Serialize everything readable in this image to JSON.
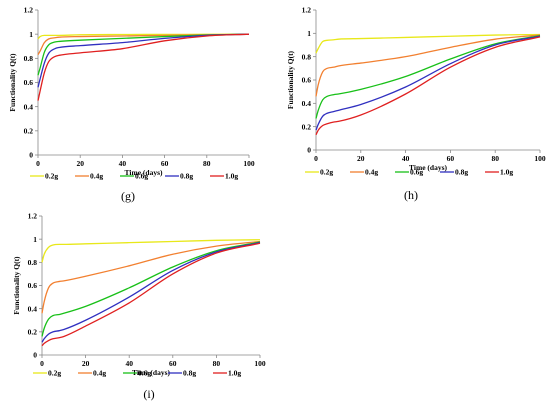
{
  "chart_data": [
    {
      "panel": "(g)",
      "type": "line",
      "xlabel": "Time (days)",
      "ylabel": "Functionality Q(t)",
      "xlim": [
        0,
        100
      ],
      "ylim": [
        0,
        1.2
      ],
      "xticks": [
        0,
        20,
        40,
        60,
        80,
        100
      ],
      "yticks": [
        0,
        0.2,
        0.4,
        0.6,
        0.8,
        1,
        1.2
      ],
      "ytick_labels": [
        "0",
        "0.2",
        "0.4",
        "0.6",
        "0.8",
        "1",
        "1.2"
      ],
      "grid": false,
      "legend_position": "bottom",
      "series": [
        {
          "name": "0.2g",
          "color": "#e8e81a",
          "x": [
            0,
            1,
            3,
            5,
            8,
            10,
            20,
            40,
            60,
            80,
            100
          ],
          "y": [
            0.96,
            0.98,
            0.99,
            0.99,
            0.99,
            0.99,
            0.995,
            0.997,
            0.998,
            0.999,
            1.0
          ]
        },
        {
          "name": "0.4g",
          "color": "#f28030",
          "x": [
            0,
            1,
            3,
            5,
            8,
            10,
            20,
            40,
            60,
            80,
            100
          ],
          "y": [
            0.83,
            0.86,
            0.93,
            0.96,
            0.97,
            0.975,
            0.98,
            0.985,
            0.99,
            0.995,
            1.0
          ]
        },
        {
          "name": "0.6g",
          "color": "#18c018",
          "x": [
            0,
            1,
            3,
            5,
            8,
            10,
            20,
            40,
            60,
            80,
            100
          ],
          "y": [
            0.66,
            0.72,
            0.85,
            0.91,
            0.935,
            0.94,
            0.95,
            0.965,
            0.98,
            0.993,
            1.0
          ]
        },
        {
          "name": "0.8g",
          "color": "#3030c0",
          "x": [
            0,
            1,
            3,
            5,
            8,
            10,
            20,
            40,
            60,
            80,
            100
          ],
          "y": [
            0.56,
            0.63,
            0.76,
            0.84,
            0.88,
            0.89,
            0.905,
            0.93,
            0.965,
            0.99,
            1.0
          ]
        },
        {
          "name": "1.0g",
          "color": "#e02020",
          "x": [
            0,
            1,
            3,
            5,
            8,
            10,
            20,
            40,
            60,
            80,
            100
          ],
          "y": [
            0.45,
            0.53,
            0.68,
            0.77,
            0.815,
            0.825,
            0.845,
            0.88,
            0.945,
            0.985,
            1.0
          ]
        }
      ]
    },
    {
      "panel": "(h)",
      "type": "line",
      "xlabel": "Time (days)",
      "ylabel": "Functionality Q(t)",
      "xlim": [
        0,
        100
      ],
      "ylim": [
        0,
        1.2
      ],
      "xticks": [
        0,
        20,
        40,
        60,
        80,
        100
      ],
      "yticks": [
        0,
        0.2,
        0.4,
        0.6,
        0.8,
        1,
        1.2
      ],
      "ytick_labels": [
        "0",
        "0.2",
        "0.4",
        "0.6",
        "0.8",
        "1",
        "1.2"
      ],
      "grid": false,
      "legend_position": "bottom",
      "series": [
        {
          "name": "0.2g",
          "color": "#e8e81a",
          "x": [
            0,
            1,
            3,
            5,
            8,
            10,
            20,
            40,
            60,
            80,
            100
          ],
          "y": [
            0.83,
            0.87,
            0.93,
            0.94,
            0.945,
            0.95,
            0.955,
            0.965,
            0.975,
            0.985,
            0.99
          ]
        },
        {
          "name": "0.4g",
          "color": "#f28030",
          "x": [
            0,
            1,
            3,
            5,
            8,
            10,
            20,
            40,
            60,
            80,
            100
          ],
          "y": [
            0.46,
            0.56,
            0.67,
            0.7,
            0.71,
            0.72,
            0.745,
            0.8,
            0.88,
            0.95,
            0.985
          ]
        },
        {
          "name": "0.6g",
          "color": "#18c018",
          "x": [
            0,
            1,
            3,
            5,
            8,
            10,
            20,
            40,
            60,
            80,
            100
          ],
          "y": [
            0.27,
            0.34,
            0.43,
            0.46,
            0.475,
            0.48,
            0.52,
            0.63,
            0.78,
            0.91,
            0.98
          ]
        },
        {
          "name": "0.8g",
          "color": "#3030c0",
          "x": [
            0,
            1,
            3,
            5,
            8,
            10,
            20,
            40,
            60,
            80,
            100
          ],
          "y": [
            0.17,
            0.22,
            0.29,
            0.315,
            0.33,
            0.34,
            0.39,
            0.54,
            0.74,
            0.9,
            0.975
          ]
        },
        {
          "name": "1.0g",
          "color": "#e02020",
          "x": [
            0,
            1,
            3,
            5,
            8,
            10,
            20,
            40,
            60,
            80,
            100
          ],
          "y": [
            0.13,
            0.17,
            0.21,
            0.225,
            0.24,
            0.245,
            0.3,
            0.48,
            0.71,
            0.88,
            0.97
          ]
        }
      ]
    },
    {
      "panel": "(i)",
      "type": "line",
      "xlabel": "Time (days)",
      "ylabel": "Functionality Q(t)",
      "xlim": [
        0,
        100
      ],
      "ylim": [
        0,
        1.2
      ],
      "xticks": [
        0,
        20,
        40,
        60,
        80,
        100
      ],
      "yticks": [
        0,
        0.2,
        0.4,
        0.6,
        0.8,
        1,
        1.2
      ],
      "ytick_labels": [
        "0",
        "0.2",
        "0.4",
        "0.6",
        "0.8",
        "1",
        "1.2"
      ],
      "grid": false,
      "legend_position": "bottom",
      "series": [
        {
          "name": "0.2g",
          "color": "#e8e81a",
          "x": [
            0,
            1,
            3,
            5,
            8,
            10,
            20,
            40,
            60,
            80,
            100
          ],
          "y": [
            0.8,
            0.87,
            0.93,
            0.95,
            0.955,
            0.955,
            0.96,
            0.97,
            0.98,
            0.99,
            0.995
          ]
        },
        {
          "name": "0.4g",
          "color": "#f28030",
          "x": [
            0,
            1,
            3,
            5,
            8,
            10,
            20,
            40,
            60,
            80,
            100
          ],
          "y": [
            0.36,
            0.46,
            0.58,
            0.62,
            0.635,
            0.64,
            0.68,
            0.77,
            0.87,
            0.94,
            0.98
          ]
        },
        {
          "name": "0.6g",
          "color": "#18c018",
          "x": [
            0,
            1,
            3,
            5,
            8,
            10,
            20,
            40,
            60,
            80,
            100
          ],
          "y": [
            0.16,
            0.23,
            0.31,
            0.34,
            0.35,
            0.36,
            0.42,
            0.58,
            0.76,
            0.9,
            0.975
          ]
        },
        {
          "name": "0.8g",
          "color": "#3030c0",
          "x": [
            0,
            1,
            3,
            5,
            8,
            10,
            20,
            40,
            60,
            80,
            100
          ],
          "y": [
            0.11,
            0.14,
            0.18,
            0.2,
            0.21,
            0.22,
            0.3,
            0.5,
            0.73,
            0.89,
            0.97
          ]
        },
        {
          "name": "1.0g",
          "color": "#e02020",
          "x": [
            0,
            1,
            3,
            5,
            8,
            10,
            20,
            40,
            60,
            80,
            100
          ],
          "y": [
            0.08,
            0.1,
            0.125,
            0.14,
            0.15,
            0.16,
            0.25,
            0.45,
            0.7,
            0.88,
            0.965
          ]
        }
      ]
    }
  ]
}
